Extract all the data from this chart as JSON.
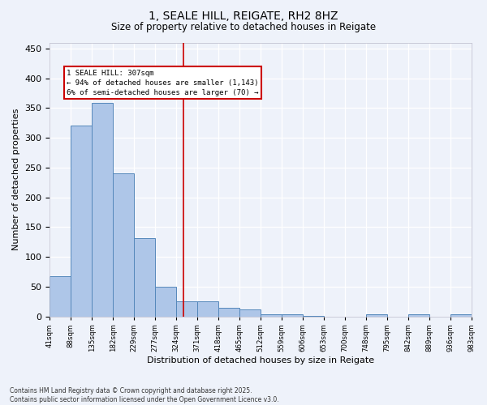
{
  "title_line1": "1, SEALE HILL, REIGATE, RH2 8HZ",
  "title_line2": "Size of property relative to detached houses in Reigate",
  "xlabel": "Distribution of detached houses by size in Reigate",
  "ylabel": "Number of detached properties",
  "bar_values": [
    67,
    320,
    358,
    240,
    131,
    50,
    25,
    25,
    14,
    11,
    4,
    4,
    1,
    0,
    0,
    3,
    0,
    3,
    0,
    3
  ],
  "bin_labels": [
    "41sqm",
    "88sqm",
    "135sqm",
    "182sqm",
    "229sqm",
    "277sqm",
    "324sqm",
    "371sqm",
    "418sqm",
    "465sqm",
    "512sqm",
    "559sqm",
    "606sqm",
    "653sqm",
    "700sqm",
    "748sqm",
    "795sqm",
    "842sqm",
    "889sqm",
    "936sqm",
    "983sqm"
  ],
  "bar_color": "#aec6e8",
  "bar_edge_color": "#5588bb",
  "vline_x": 5.85,
  "vline_color": "#cc0000",
  "annotation_title": "1 SEALE HILL: 307sqm",
  "annotation_line2": "← 94% of detached houses are smaller (1,143)",
  "annotation_line3": "6% of semi-detached houses are larger (70) →",
  "annotation_box_color": "#cc0000",
  "ylim": [
    0,
    460
  ],
  "yticks": [
    0,
    50,
    100,
    150,
    200,
    250,
    300,
    350,
    400,
    450
  ],
  "footer_line1": "Contains HM Land Registry data © Crown copyright and database right 2025.",
  "footer_line2": "Contains public sector information licensed under the Open Government Licence v3.0.",
  "bg_color": "#eef2fa",
  "plot_bg_color": "#eef2fa"
}
